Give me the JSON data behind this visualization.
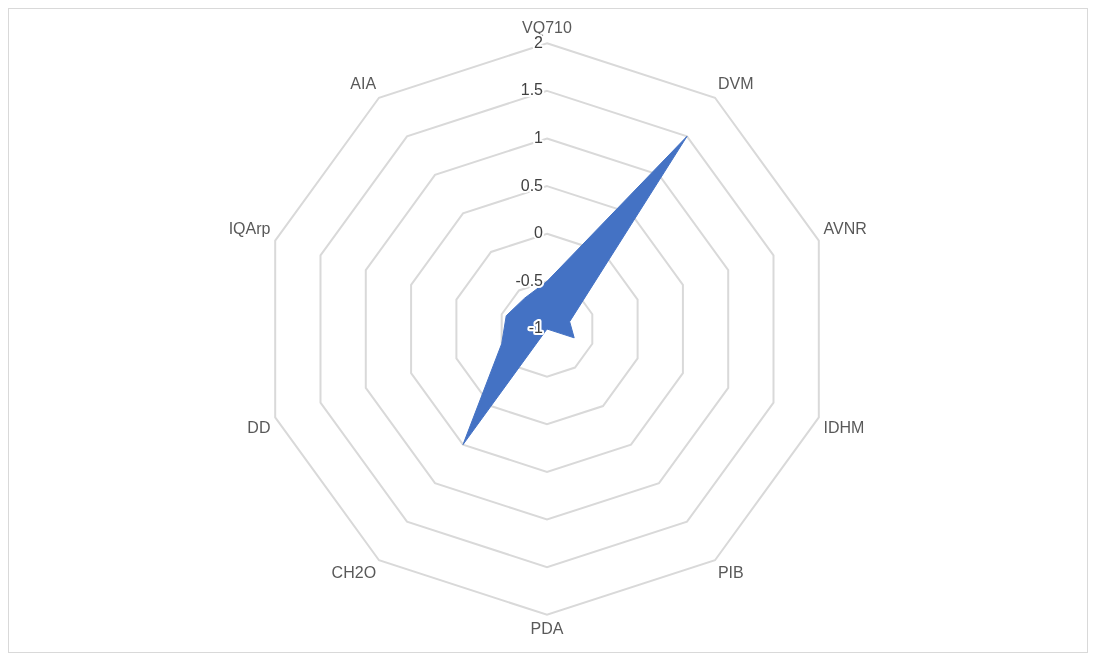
{
  "chart_data": {
    "type": "radar",
    "categories": [
      "VQ710",
      "DVM",
      "AVNR",
      "IDHM",
      "PIB",
      "PDA",
      "CH2O",
      "DD",
      "IQArp",
      "AIA"
    ],
    "series": [
      {
        "color": "#4472c4",
        "values": [
          -0.5,
          1.5,
          -0.75,
          -0.7,
          -1,
          -1,
          0.5,
          -0.5,
          -0.55,
          -0.6
        ]
      }
    ],
    "ylim": [
      -1,
      2
    ],
    "yticks": [
      -1,
      -0.5,
      0,
      0.5,
      1,
      1.5,
      2
    ],
    "grid": true,
    "legend": false,
    "marker": "none"
  }
}
